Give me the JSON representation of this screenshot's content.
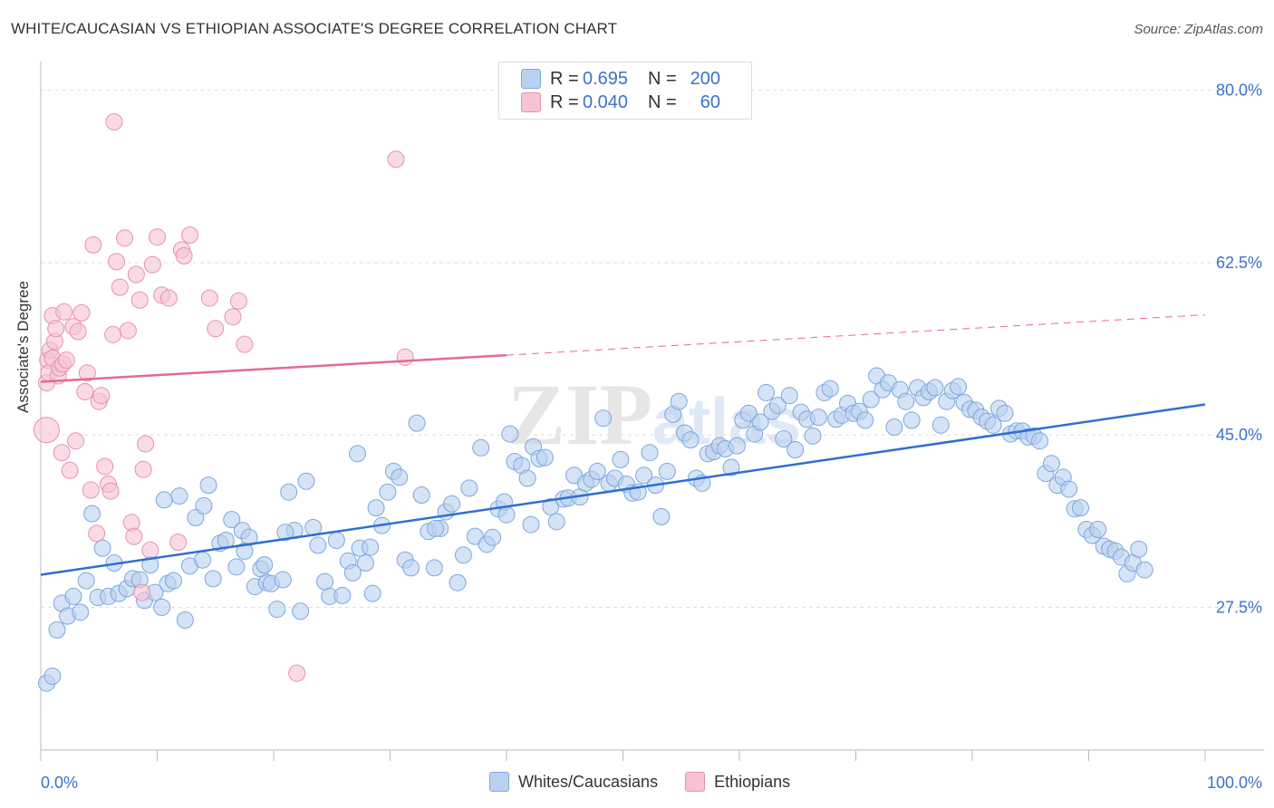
{
  "header": {
    "title": "WHITE/CAUCASIAN VS ETHIOPIAN ASSOCIATE'S DEGREE CORRELATION CHART",
    "source": "Source: ZipAtlas.com"
  },
  "legend_box": {
    "rows": [
      {
        "r_label": "R =",
        "r_value": "0.695",
        "n_label": "N =",
        "n_value": "200"
      },
      {
        "r_label": "R =",
        "r_value": "0.040",
        "n_label": "N =",
        "n_value": "60"
      }
    ]
  },
  "bottom_legend": {
    "items": [
      {
        "label": "Whites/Caucasians"
      },
      {
        "label": "Ethiopians"
      }
    ]
  },
  "colors": {
    "blue_fill": "#b9d1f0",
    "blue_stroke": "#7da7dc",
    "blue_line": "#2f6fd0",
    "pink_fill": "#f7c3d4",
    "pink_stroke": "#e691ae",
    "pink_line": "#e46a93",
    "tick_label": "#3a73c9",
    "grid": "#dddddd"
  },
  "chart_data": {
    "type": "scatter",
    "title": "WHITE/CAUCASIAN VS ETHIOPIAN ASSOCIATE'S DEGREE CORRELATION CHART",
    "xlabel": "",
    "ylabel": "Associate's Degree",
    "xlim": [
      0,
      100
    ],
    "ylim": [
      13,
      82
    ],
    "x_tick_labels": [
      "0.0%",
      "100.0%"
    ],
    "y_ticks": [
      27.5,
      45.0,
      62.5,
      80.0
    ],
    "y_tick_labels": [
      "27.5%",
      "45.0%",
      "62.5%",
      "80.0%"
    ],
    "grid": true,
    "watermark": "ZIPatlas",
    "series": [
      {
        "name": "Whites/Caucasians",
        "r": 0.695,
        "n": 200,
        "trend": {
          "x0": 0,
          "y0": 30.8,
          "x1": 100,
          "y1": 48.1,
          "style": "solid"
        },
        "points": [
          [
            0.5,
            19.8
          ],
          [
            1.0,
            20.5
          ],
          [
            1.4,
            25.2
          ],
          [
            1.8,
            27.9
          ],
          [
            2.3,
            26.6
          ],
          [
            2.8,
            28.6
          ],
          [
            3.4,
            27.0
          ],
          [
            3.9,
            30.2
          ],
          [
            4.4,
            37.0
          ],
          [
            4.9,
            28.5
          ],
          [
            5.3,
            33.5
          ],
          [
            5.8,
            28.6
          ],
          [
            6.3,
            32.0
          ],
          [
            6.7,
            28.9
          ],
          [
            7.4,
            29.4
          ],
          [
            7.9,
            30.4
          ],
          [
            8.5,
            30.3
          ],
          [
            8.9,
            28.2
          ],
          [
            9.4,
            31.8
          ],
          [
            9.8,
            29.0
          ],
          [
            10.4,
            27.5
          ],
          [
            10.9,
            29.9
          ],
          [
            11.4,
            30.2
          ],
          [
            11.9,
            38.8
          ],
          [
            12.4,
            26.2
          ],
          [
            12.8,
            31.7
          ],
          [
            13.3,
            36.6
          ],
          [
            13.9,
            32.3
          ],
          [
            14.4,
            39.9
          ],
          [
            14.8,
            30.4
          ],
          [
            15.4,
            34.0
          ],
          [
            15.9,
            34.3
          ],
          [
            16.4,
            36.4
          ],
          [
            16.8,
            31.6
          ],
          [
            17.3,
            35.3
          ],
          [
            17.9,
            34.6
          ],
          [
            18.4,
            29.6
          ],
          [
            18.9,
            31.4
          ],
          [
            19.4,
            30.0
          ],
          [
            19.8,
            29.9
          ],
          [
            20.3,
            27.3
          ],
          [
            20.8,
            30.3
          ],
          [
            21.3,
            39.2
          ],
          [
            21.8,
            35.3
          ],
          [
            22.3,
            27.1
          ],
          [
            22.8,
            40.3
          ],
          [
            23.4,
            35.6
          ],
          [
            23.8,
            33.8
          ],
          [
            24.4,
            30.1
          ],
          [
            24.8,
            28.6
          ],
          [
            25.4,
            34.3
          ],
          [
            25.9,
            28.7
          ],
          [
            26.4,
            32.2
          ],
          [
            26.8,
            31.0
          ],
          [
            27.4,
            33.5
          ],
          [
            27.9,
            32.0
          ],
          [
            28.3,
            33.6
          ],
          [
            28.8,
            37.6
          ],
          [
            29.3,
            35.8
          ],
          [
            29.8,
            39.2
          ],
          [
            30.3,
            41.3
          ],
          [
            30.8,
            40.7
          ],
          [
            31.3,
            32.3
          ],
          [
            31.8,
            31.5
          ],
          [
            32.3,
            46.2
          ],
          [
            32.7,
            38.9
          ],
          [
            33.3,
            35.2
          ],
          [
            33.8,
            31.5
          ],
          [
            34.3,
            35.5
          ],
          [
            34.8,
            37.2
          ],
          [
            35.3,
            38.0
          ],
          [
            35.8,
            30.0
          ],
          [
            36.3,
            32.8
          ],
          [
            36.8,
            39.6
          ],
          [
            37.3,
            34.7
          ],
          [
            37.8,
            43.7
          ],
          [
            38.3,
            33.9
          ],
          [
            38.8,
            34.6
          ],
          [
            39.3,
            37.5
          ],
          [
            39.8,
            38.2
          ],
          [
            40.3,
            45.1
          ],
          [
            40.7,
            42.3
          ],
          [
            41.3,
            41.9
          ],
          [
            41.8,
            40.6
          ],
          [
            42.3,
            43.8
          ],
          [
            42.8,
            42.6
          ],
          [
            43.3,
            42.7
          ],
          [
            43.8,
            37.7
          ],
          [
            44.3,
            36.2
          ],
          [
            44.9,
            38.5
          ],
          [
            45.3,
            38.6
          ],
          [
            45.8,
            40.9
          ],
          [
            46.3,
            38.7
          ],
          [
            46.8,
            40.1
          ],
          [
            47.3,
            40.5
          ],
          [
            47.8,
            41.3
          ],
          [
            48.3,
            46.7
          ],
          [
            48.8,
            40.1
          ],
          [
            49.3,
            40.6
          ],
          [
            49.8,
            42.5
          ],
          [
            50.3,
            40.0
          ],
          [
            50.8,
            39.1
          ],
          [
            51.3,
            39.2
          ],
          [
            51.8,
            40.9
          ],
          [
            52.3,
            43.2
          ],
          [
            52.8,
            39.9
          ],
          [
            53.3,
            36.7
          ],
          [
            53.8,
            41.3
          ],
          [
            54.3,
            47.1
          ],
          [
            54.8,
            48.4
          ],
          [
            55.3,
            45.2
          ],
          [
            55.8,
            44.5
          ],
          [
            56.3,
            40.6
          ],
          [
            56.8,
            40.1
          ],
          [
            57.3,
            43.1
          ],
          [
            57.8,
            43.3
          ],
          [
            58.3,
            43.9
          ],
          [
            58.8,
            43.6
          ],
          [
            59.3,
            41.7
          ],
          [
            59.8,
            43.9
          ],
          [
            60.3,
            46.5
          ],
          [
            60.8,
            47.2
          ],
          [
            61.3,
            45.1
          ],
          [
            61.8,
            46.3
          ],
          [
            62.3,
            49.3
          ],
          [
            62.8,
            47.4
          ],
          [
            63.3,
            48.0
          ],
          [
            63.8,
            44.6
          ],
          [
            64.3,
            49.0
          ],
          [
            64.8,
            43.5
          ],
          [
            65.3,
            47.3
          ],
          [
            65.8,
            46.6
          ],
          [
            66.3,
            44.9
          ],
          [
            66.8,
            46.8
          ],
          [
            67.3,
            49.3
          ],
          [
            67.8,
            49.7
          ],
          [
            68.3,
            46.6
          ],
          [
            68.8,
            47.0
          ],
          [
            69.3,
            48.2
          ],
          [
            69.8,
            47.2
          ],
          [
            70.3,
            47.4
          ],
          [
            70.8,
            46.5
          ],
          [
            71.3,
            48.6
          ],
          [
            71.8,
            51.0
          ],
          [
            72.3,
            49.6
          ],
          [
            72.8,
            50.3
          ],
          [
            73.3,
            45.8
          ],
          [
            73.8,
            49.6
          ],
          [
            74.3,
            48.4
          ],
          [
            74.8,
            46.5
          ],
          [
            75.3,
            49.8
          ],
          [
            75.8,
            48.8
          ],
          [
            76.3,
            49.4
          ],
          [
            76.8,
            49.8
          ],
          [
            77.3,
            46.0
          ],
          [
            77.8,
            48.4
          ],
          [
            78.3,
            49.5
          ],
          [
            78.8,
            49.9
          ],
          [
            79.3,
            48.3
          ],
          [
            79.8,
            47.6
          ],
          [
            80.3,
            47.5
          ],
          [
            80.8,
            46.8
          ],
          [
            81.3,
            46.4
          ],
          [
            81.8,
            46.0
          ],
          [
            82.3,
            47.7
          ],
          [
            82.8,
            47.2
          ],
          [
            83.3,
            45.1
          ],
          [
            83.8,
            45.4
          ],
          [
            84.3,
            45.4
          ],
          [
            84.8,
            44.8
          ],
          [
            85.3,
            44.9
          ],
          [
            85.8,
            44.4
          ],
          [
            86.3,
            41.1
          ],
          [
            86.8,
            42.1
          ],
          [
            87.3,
            39.9
          ],
          [
            87.8,
            40.7
          ],
          [
            88.3,
            39.5
          ],
          [
            88.8,
            37.5
          ],
          [
            89.3,
            37.6
          ],
          [
            89.8,
            35.4
          ],
          [
            90.3,
            34.8
          ],
          [
            90.8,
            35.4
          ],
          [
            91.3,
            33.7
          ],
          [
            91.8,
            33.4
          ],
          [
            92.3,
            33.2
          ],
          [
            92.8,
            32.6
          ],
          [
            93.3,
            30.9
          ],
          [
            93.8,
            32.0
          ],
          [
            94.3,
            33.4
          ],
          [
            94.8,
            31.3
          ],
          [
            42.1,
            35.9
          ],
          [
            33.9,
            35.5
          ],
          [
            28.5,
            28.9
          ],
          [
            19.2,
            31.8
          ],
          [
            21.0,
            35.1
          ],
          [
            10.6,
            38.4
          ],
          [
            40.0,
            36.9
          ],
          [
            14.0,
            37.8
          ],
          [
            27.2,
            43.1
          ],
          [
            17.5,
            33.2
          ]
        ]
      },
      {
        "name": "Ethiopians",
        "r": 0.04,
        "n": 60,
        "trend": {
          "x0": 0,
          "y0": 50.4,
          "x1": 40,
          "y1": 53.1,
          "x_dash_end": 100,
          "y_dash_end": 57.2,
          "style": "solid-then-dashed"
        },
        "points": [
          [
            0.5,
            45.5
          ],
          [
            0.5,
            50.3
          ],
          [
            0.6,
            52.6
          ],
          [
            0.7,
            51.3
          ],
          [
            0.8,
            53.6
          ],
          [
            1.0,
            57.1
          ],
          [
            1.0,
            52.8
          ],
          [
            1.2,
            54.5
          ],
          [
            1.3,
            55.8
          ],
          [
            1.5,
            51.0
          ],
          [
            1.6,
            51.8
          ],
          [
            1.8,
            43.2
          ],
          [
            1.9,
            52.2
          ],
          [
            2.0,
            57.5
          ],
          [
            2.2,
            52.6
          ],
          [
            2.5,
            41.4
          ],
          [
            2.8,
            56.0
          ],
          [
            3.0,
            44.4
          ],
          [
            3.2,
            55.5
          ],
          [
            3.5,
            57.4
          ],
          [
            3.8,
            49.4
          ],
          [
            4.0,
            51.3
          ],
          [
            4.3,
            39.4
          ],
          [
            4.5,
            64.3
          ],
          [
            4.8,
            35.0
          ],
          [
            5.0,
            48.4
          ],
          [
            5.2,
            49.0
          ],
          [
            5.5,
            41.8
          ],
          [
            5.8,
            40.0
          ],
          [
            6.0,
            39.3
          ],
          [
            6.2,
            55.2
          ],
          [
            6.5,
            62.6
          ],
          [
            6.8,
            60.0
          ],
          [
            7.2,
            65.0
          ],
          [
            7.5,
            55.6
          ],
          [
            7.8,
            36.1
          ],
          [
            8.0,
            34.7
          ],
          [
            8.2,
            61.3
          ],
          [
            8.5,
            58.7
          ],
          [
            8.8,
            41.5
          ],
          [
            9.0,
            44.1
          ],
          [
            9.4,
            33.3
          ],
          [
            9.6,
            62.3
          ],
          [
            10.0,
            65.1
          ],
          [
            10.4,
            59.2
          ],
          [
            11.0,
            58.9
          ],
          [
            11.8,
            34.1
          ],
          [
            12.1,
            63.8
          ],
          [
            12.3,
            63.2
          ],
          [
            12.8,
            65.3
          ],
          [
            14.5,
            58.9
          ],
          [
            15.0,
            55.8
          ],
          [
            16.5,
            57.0
          ],
          [
            17.0,
            58.6
          ],
          [
            17.5,
            54.2
          ],
          [
            22.0,
            20.8
          ],
          [
            30.5,
            73.0
          ],
          [
            31.3,
            52.9
          ],
          [
            6.3,
            76.8
          ],
          [
            8.7,
            29.0
          ]
        ]
      }
    ]
  }
}
